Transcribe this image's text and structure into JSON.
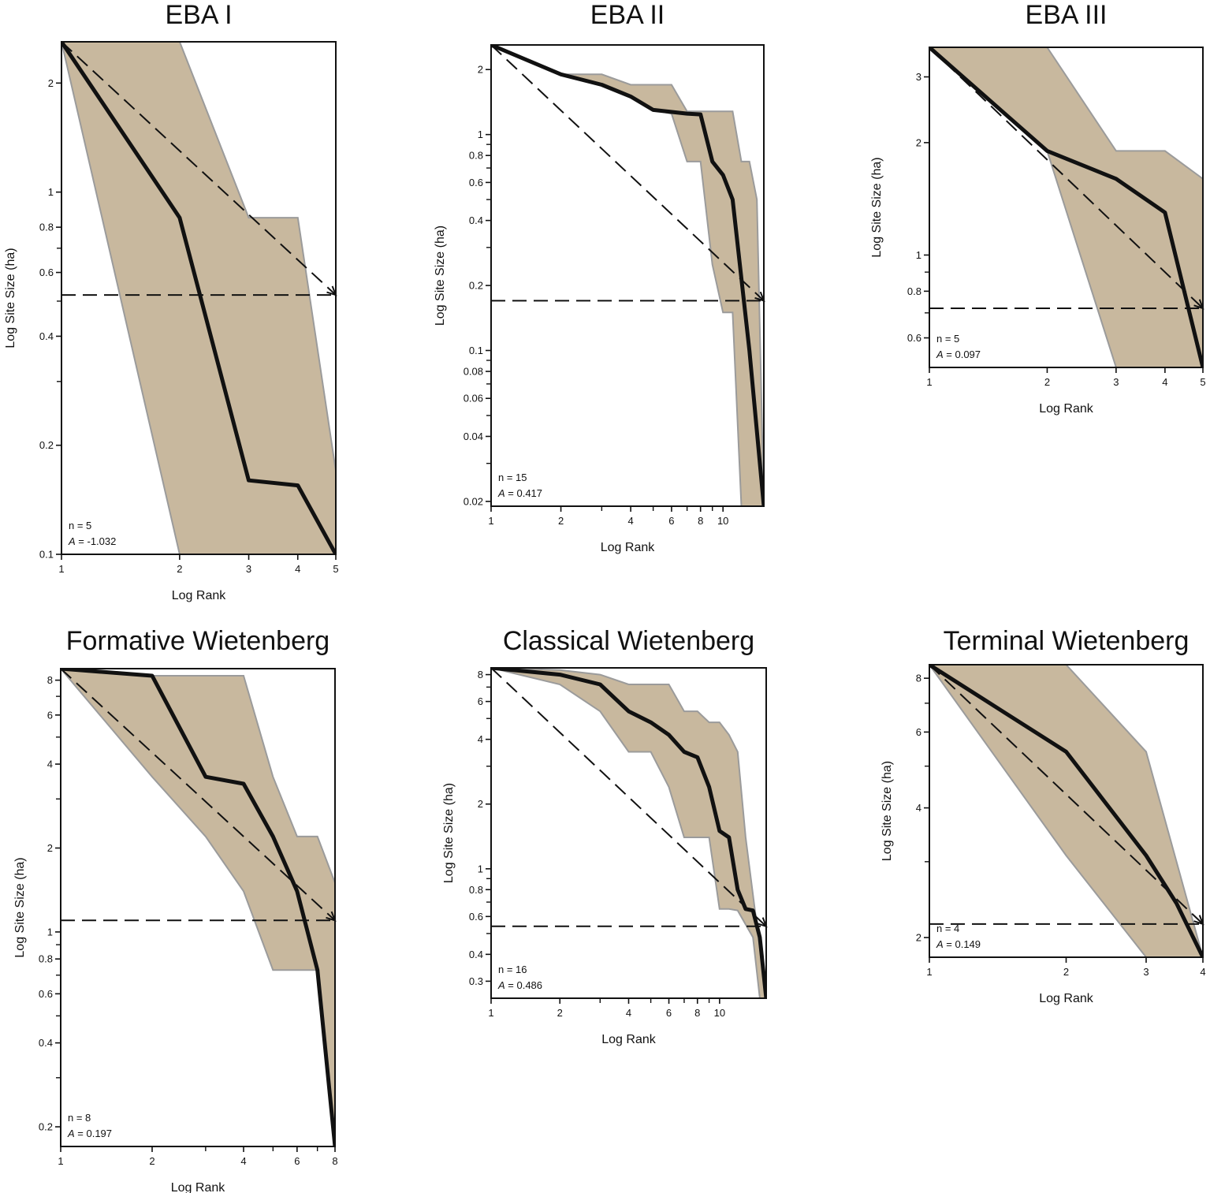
{
  "figure": {
    "style": {
      "envelope_fill": "#c8b89e",
      "envelope_stroke": "#9b9b9b",
      "line_color": "#111111"
    }
  },
  "chart_data": [
    {
      "type": "line",
      "title": "EBA I",
      "xlabel": "Log Rank",
      "ylabel": "Log Site Size (ha)",
      "xscale": "log",
      "yscale": "log",
      "xlim": [
        1,
        5
      ],
      "ylim": [
        0.1,
        2.6
      ],
      "xticks": [
        1,
        2,
        3,
        4,
        5
      ],
      "xticklabels": [
        "1",
        "2",
        "3",
        "4",
        "5"
      ],
      "yticks": [
        0.1,
        0.2,
        0.4,
        0.6,
        0.8,
        1,
        2
      ],
      "yticklabels": [
        "0.1",
        "0.2",
        "0.4",
        "0.6",
        "0.8",
        "1",
        "2"
      ],
      "yminor": [
        0.3,
        0.5,
        0.7
      ],
      "observed": {
        "x": [
          1,
          2,
          3,
          4,
          5
        ],
        "y": [
          2.6,
          0.85,
          0.16,
          0.155,
          0.1
        ]
      },
      "zipf_reference": {
        "x": [
          1,
          5
        ],
        "y": [
          2.6,
          0.52
        ]
      },
      "uniform_reference": {
        "y": 0.52
      },
      "envelope": {
        "upper": {
          "x": [
            1,
            2,
            3,
            3,
            4,
            4,
            5
          ],
          "y": [
            2.6,
            2.6,
            0.85,
            0.85,
            0.85,
            0.85,
            0.17
          ]
        },
        "lower": {
          "x": [
            1,
            2,
            5
          ],
          "y": [
            2.6,
            0.1,
            0.1
          ]
        }
      },
      "stats": {
        "n_label": "n = 5",
        "A_label": "A",
        "A_value": " = -1.032"
      }
    },
    {
      "type": "line",
      "title": "EBA II",
      "xlabel": "Log Rank",
      "ylabel": "Log Site Size (ha)",
      "xscale": "log",
      "yscale": "log",
      "xlim": [
        1,
        15
      ],
      "ylim": [
        0.019,
        2.6
      ],
      "xticks": [
        1,
        2,
        4,
        6,
        8,
        10
      ],
      "xticklabels": [
        "1",
        "2",
        "4",
        "6",
        "8",
        "10"
      ],
      "xminor": [
        3,
        5,
        7,
        9
      ],
      "yticks": [
        0.02,
        0.04,
        0.06,
        0.08,
        0.1,
        0.2,
        0.4,
        0.6,
        0.8,
        1,
        2
      ],
      "yticklabels": [
        "0.02",
        "0.04",
        "0.06",
        "0.08",
        "0.1",
        "0.2",
        "0.4",
        "0.6",
        "0.8",
        "1",
        "2"
      ],
      "yminor": [
        0.03,
        0.05,
        0.07,
        0.09,
        0.3,
        0.5,
        0.7,
        0.9
      ],
      "observed": {
        "x": [
          1,
          2,
          3,
          4,
          5,
          7,
          8,
          9,
          10,
          11,
          13,
          15
        ],
        "y": [
          2.6,
          1.9,
          1.7,
          1.5,
          1.3,
          1.25,
          1.24,
          0.75,
          0.65,
          0.5,
          0.1,
          0.019
        ]
      },
      "zipf_reference": {
        "x": [
          1,
          15
        ],
        "y": [
          2.6,
          0.17
        ]
      },
      "uniform_reference": {
        "y": 0.17
      },
      "envelope": {
        "upper": {
          "x": [
            1,
            2,
            3,
            4,
            6,
            7,
            11,
            12,
            13,
            14,
            15
          ],
          "y": [
            2.6,
            1.9,
            1.9,
            1.7,
            1.7,
            1.28,
            1.28,
            0.75,
            0.75,
            0.5,
            0.019
          ]
        },
        "lower": {
          "x": [
            1,
            2,
            3,
            4,
            5,
            6,
            7,
            8,
            9,
            10,
            11,
            12,
            15
          ],
          "y": [
            2.6,
            1.9,
            1.7,
            1.5,
            1.3,
            1.25,
            0.75,
            0.75,
            0.25,
            0.15,
            0.15,
            0.019,
            0.019
          ]
        }
      },
      "stats": {
        "n_label": "n = 15",
        "A_label": "A",
        "A_value": " = 0.417"
      }
    },
    {
      "type": "line",
      "title": "EBA III",
      "xlabel": "Log Rank",
      "ylabel": "Log Site Size (ha)",
      "xscale": "log",
      "yscale": "log",
      "xlim": [
        1,
        5
      ],
      "ylim": [
        0.5,
        3.6
      ],
      "xticks": [
        1,
        2,
        3,
        4,
        5
      ],
      "xticklabels": [
        "1",
        "2",
        "3",
        "4",
        "5"
      ],
      "yticks": [
        0.6,
        0.8,
        1,
        2,
        3
      ],
      "yticklabels": [
        "0.6",
        "0.8",
        "1",
        "2",
        "3"
      ],
      "yminor": [
        0.7,
        0.9
      ],
      "observed": {
        "x": [
          1,
          2,
          3,
          4,
          5
        ],
        "y": [
          3.6,
          1.9,
          1.6,
          1.3,
          0.5
        ]
      },
      "zipf_reference": {
        "x": [
          1,
          5
        ],
        "y": [
          3.6,
          0.72
        ]
      },
      "uniform_reference": {
        "y": 0.72
      },
      "envelope": {
        "upper": {
          "x": [
            1,
            2,
            3,
            4,
            5
          ],
          "y": [
            3.6,
            3.6,
            1.9,
            1.9,
            1.6
          ]
        },
        "lower": {
          "x": [
            1,
            2,
            3,
            5
          ],
          "y": [
            3.6,
            1.9,
            0.5,
            0.5
          ]
        }
      },
      "stats": {
        "n_label": "n = 5",
        "A_label": "A",
        "A_value": " = 0.097"
      }
    },
    {
      "type": "line",
      "title": "Formative Wietenberg",
      "xlabel": "Log Rank",
      "ylabel": "Log Site Size (ha)",
      "xscale": "log",
      "yscale": "log",
      "xlim": [
        1,
        8
      ],
      "ylim": [
        0.17,
        8.8
      ],
      "xticks": [
        1,
        2,
        4,
        6,
        8
      ],
      "xticklabels": [
        "1",
        "2",
        "4",
        "6",
        "8"
      ],
      "xminor": [
        3,
        5,
        7
      ],
      "yticks": [
        0.2,
        0.4,
        0.6,
        0.8,
        1,
        2,
        4,
        6,
        8
      ],
      "yticklabels": [
        "0.2",
        "0.4",
        "0.6",
        "0.8",
        "1",
        "2",
        "4",
        "6",
        "8"
      ],
      "yminor": [
        0.3,
        0.5,
        0.7,
        0.9,
        3,
        5,
        7
      ],
      "observed": {
        "x": [
          1,
          2,
          3,
          4,
          5,
          6,
          7,
          8
        ],
        "y": [
          8.8,
          8.3,
          3.6,
          3.4,
          2.2,
          1.4,
          0.73,
          0.17
        ]
      },
      "zipf_reference": {
        "x": [
          1,
          8
        ],
        "y": [
          8.8,
          1.1
        ]
      },
      "uniform_reference": {
        "y": 1.1
      },
      "envelope": {
        "upper": {
          "x": [
            1,
            2,
            3,
            4,
            5,
            6,
            7,
            8
          ],
          "y": [
            8.8,
            8.3,
            8.3,
            8.3,
            3.6,
            2.2,
            2.2,
            1.5
          ]
        },
        "lower": {
          "x": [
            1,
            2,
            3,
            4,
            5,
            7,
            8
          ],
          "y": [
            8.8,
            3.6,
            2.2,
            1.4,
            0.73,
            0.73,
            0.17
          ]
        }
      },
      "stats": {
        "n_label": "n = 8",
        "A_label": "A",
        "A_value": " = 0.197"
      }
    },
    {
      "type": "line",
      "title": "Classical Wietenberg",
      "xlabel": "Log Rank",
      "ylabel": "Log Site Size (ha)",
      "xscale": "log",
      "yscale": "log",
      "xlim": [
        1,
        16
      ],
      "ylim": [
        0.25,
        8.6
      ],
      "xticks": [
        1,
        2,
        4,
        6,
        8,
        10
      ],
      "xticklabels": [
        "1",
        "2",
        "4",
        "6",
        "8",
        "10"
      ],
      "xminor": [
        3,
        5,
        7,
        9
      ],
      "yticks": [
        0.3,
        0.4,
        0.6,
        0.8,
        1,
        2,
        4,
        6,
        8
      ],
      "yticklabels": [
        "0.3",
        "0.4",
        "0.6",
        "0.8",
        "1",
        "2",
        "4",
        "6",
        "8"
      ],
      "yminor": [
        0.5,
        0.7,
        0.9,
        3,
        5,
        7
      ],
      "observed": {
        "x": [
          1,
          2,
          3,
          4,
          5,
          6,
          7,
          8,
          9,
          10,
          11,
          12,
          13,
          14,
          15,
          16
        ],
        "y": [
          8.6,
          8.0,
          7.2,
          5.4,
          4.8,
          4.2,
          3.5,
          3.3,
          2.4,
          1.5,
          1.4,
          0.8,
          0.65,
          0.64,
          0.48,
          0.25
        ]
      },
      "zipf_reference": {
        "x": [
          1,
          16
        ],
        "y": [
          8.6,
          0.54
        ]
      },
      "uniform_reference": {
        "y": 0.54
      },
      "envelope": {
        "upper": {
          "x": [
            1,
            2,
            3,
            4,
            6,
            7,
            8,
            9,
            10,
            11,
            12,
            13,
            16
          ],
          "y": [
            8.6,
            8.4,
            8.0,
            7.2,
            7.2,
            5.4,
            5.4,
            4.8,
            4.8,
            4.2,
            3.5,
            1.4,
            0.25
          ]
        },
        "lower": {
          "x": [
            1,
            2,
            3,
            4,
            5,
            6,
            7,
            9,
            10,
            11,
            12,
            14,
            15,
            16
          ],
          "y": [
            8.6,
            7.2,
            5.4,
            3.5,
            3.5,
            2.4,
            1.4,
            1.4,
            0.65,
            0.65,
            0.64,
            0.48,
            0.25,
            0.25
          ]
        }
      },
      "stats": {
        "n_label": "n = 16",
        "A_label": "A",
        "A_value": " = 0.486"
      }
    },
    {
      "type": "line",
      "title": "Terminal Wietenberg",
      "xlabel": "Log Rank",
      "ylabel": "Log Site Size (ha)",
      "xscale": "log",
      "yscale": "log",
      "xlim": [
        1,
        4
      ],
      "ylim": [
        1.8,
        8.6
      ],
      "xticks": [
        1,
        2,
        3,
        4
      ],
      "xticklabels": [
        "1",
        "2",
        "3",
        "4"
      ],
      "yticks": [
        2,
        4,
        6,
        8
      ],
      "yticklabels": [
        "2",
        "4",
        "6",
        "8"
      ],
      "yminor": [
        3,
        5,
        7
      ],
      "observed": {
        "x": [
          1,
          2,
          3,
          3.5,
          4
        ],
        "y": [
          8.6,
          5.4,
          3.1,
          2.4,
          1.8
        ]
      },
      "zipf_reference": {
        "x": [
          1,
          4
        ],
        "y": [
          8.6,
          2.15
        ]
      },
      "uniform_reference": {
        "y": 2.15
      },
      "envelope": {
        "upper": {
          "x": [
            1,
            2,
            3,
            4
          ],
          "y": [
            8.6,
            8.6,
            5.4,
            1.8
          ]
        },
        "lower": {
          "x": [
            1,
            2,
            3,
            4
          ],
          "y": [
            8.6,
            3.1,
            1.8,
            1.8
          ]
        }
      },
      "stats": {
        "n_label": "n = 4",
        "A_label": "A",
        "A_value": " = 0.149"
      }
    }
  ]
}
